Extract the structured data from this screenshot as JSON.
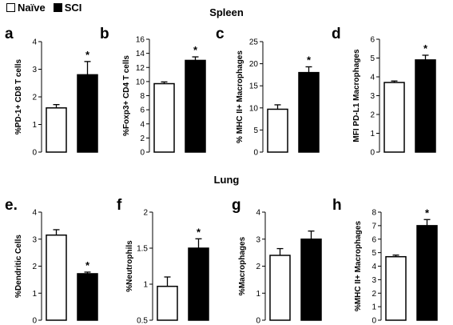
{
  "legend": {
    "items": [
      {
        "label": "Naïve",
        "color": "#ffffff"
      },
      {
        "label": "SCI",
        "color": "#000000"
      }
    ]
  },
  "sections": {
    "spleen": "Spleen",
    "lung": "Lung"
  },
  "chart_data": [
    {
      "type": "bar",
      "panel": "a",
      "categories": [
        "Naïve",
        "SCI"
      ],
      "values": [
        1.6,
        2.8
      ],
      "errors": [
        0.12,
        0.48
      ],
      "ylabel": "%PD-1+ CD8 T cells",
      "ylim": [
        0,
        4
      ],
      "yticks": [
        "0",
        "1",
        "2",
        "3",
        "4"
      ],
      "tickvals": [
        0,
        1,
        2,
        3,
        4
      ],
      "sig": "*"
    },
    {
      "type": "bar",
      "panel": "b",
      "categories": [
        "Naïve",
        "SCI"
      ],
      "values": [
        9.7,
        13.0
      ],
      "errors": [
        0.25,
        0.5
      ],
      "ylabel": "%Foxp3+ CD4 T cells",
      "ylim": [
        0,
        16
      ],
      "yticks": [
        "0",
        "2",
        "4",
        "6",
        "8",
        "10",
        "12",
        "14",
        "16"
      ],
      "tickvals": [
        0,
        2,
        4,
        6,
        8,
        10,
        12,
        14,
        16
      ],
      "sig": "*"
    },
    {
      "type": "bar",
      "panel": "c",
      "categories": [
        "Naïve",
        "SCI"
      ],
      "values": [
        9.7,
        18.0
      ],
      "errors": [
        1.0,
        1.3
      ],
      "ylabel": "% MHC II+ Macrophages",
      "ylim": [
        0,
        25
      ],
      "yticks": [
        "0",
        "5",
        "10",
        "15",
        "20",
        "25"
      ],
      "tickvals": [
        0,
        5,
        10,
        15,
        20,
        25
      ],
      "sig": "*"
    },
    {
      "type": "bar",
      "panel": "d",
      "categories": [
        "Naïve",
        "SCI"
      ],
      "values": [
        3.7,
        4.9
      ],
      "errors": [
        0.08,
        0.25
      ],
      "ylabel": "MFI PD-L1 Macrophages",
      "ylim": [
        0,
        6
      ],
      "yticks": [
        "0",
        "1",
        "2",
        "3",
        "4",
        "5",
        "6"
      ],
      "tickvals": [
        0,
        1,
        2,
        3,
        4,
        5,
        6
      ],
      "sig": "*"
    },
    {
      "type": "bar",
      "panel": "e.",
      "categories": [
        "Naïve",
        "SCI"
      ],
      "values": [
        3.15,
        1.72
      ],
      "errors": [
        0.2,
        0.06
      ],
      "ylabel": "%Dendritic Cells",
      "ylim": [
        0,
        4
      ],
      "yticks": [
        "0",
        "1",
        "2",
        "3",
        "4"
      ],
      "tickvals": [
        0,
        1,
        2,
        3,
        4
      ],
      "sig": "*"
    },
    {
      "type": "bar",
      "panel": "f",
      "categories": [
        "Naïve",
        "SCI"
      ],
      "values": [
        0.97,
        1.5
      ],
      "errors": [
        0.13,
        0.13
      ],
      "ylabel": "%Neutrophils",
      "ylim": [
        0.5,
        2
      ],
      "yticks": [
        "0.5",
        "1",
        "1.5",
        "2"
      ],
      "tickvals": [
        0.5,
        1,
        1.5,
        2
      ],
      "sig": "*"
    },
    {
      "type": "bar",
      "panel": "g",
      "categories": [
        "Naïve",
        "SCI"
      ],
      "values": [
        2.4,
        3.0
      ],
      "errors": [
        0.25,
        0.3
      ],
      "ylabel": "%Macrophages",
      "ylim": [
        0,
        4
      ],
      "yticks": [
        "0",
        "1",
        "2",
        "3",
        "4"
      ],
      "tickvals": [
        0,
        1,
        2,
        3,
        4
      ],
      "sig": ""
    },
    {
      "type": "bar",
      "panel": "h",
      "categories": [
        "Naïve",
        "SCI"
      ],
      "values": [
        4.7,
        7.0
      ],
      "errors": [
        0.12,
        0.45
      ],
      "ylabel": "%MHC II+ Macrophages",
      "ylim": [
        0,
        8
      ],
      "yticks": [
        "0",
        "1",
        "2",
        "3",
        "4",
        "5",
        "6",
        "7",
        "8"
      ],
      "tickvals": [
        0,
        1,
        2,
        3,
        4,
        5,
        6,
        7,
        8
      ],
      "sig": "*"
    }
  ]
}
